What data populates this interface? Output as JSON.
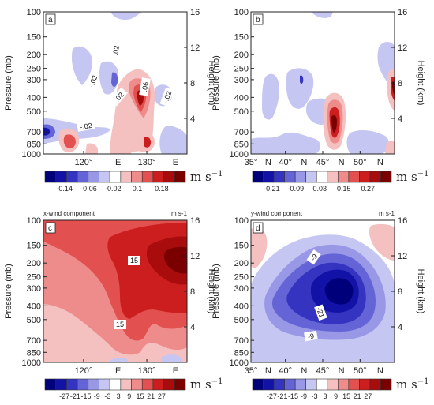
{
  "colors": {
    "reds": [
      "#f4c0c0",
      "#ee8c8c",
      "#e25050",
      "#cc1e1e",
      "#a80c0c",
      "#7a0000"
    ],
    "blues": [
      "#c6c6f2",
      "#9898e6",
      "#6464d6",
      "#3434c0",
      "#1212a6",
      "#00007a"
    ]
  },
  "chart_data": [
    {
      "panel": "a",
      "type": "heatmap",
      "title": "",
      "xlabel": "",
      "ylabel": "Pressure (mb)",
      "y2label": "Height (km)",
      "x_ticks": [
        "120°",
        "E",
        "130°",
        "E"
      ],
      "y_ticks": [
        "100",
        "150",
        "200",
        "250",
        "300",
        "400",
        "500",
        "700",
        "850",
        "1000"
      ],
      "y2_ticks": [
        "16",
        "12",
        "8",
        "4"
      ],
      "contour_labels": [
        ".02",
        "-.02",
        ".02",
        ".06",
        "-.02",
        "-.02"
      ],
      "colorbar": {
        "labels": [
          "-0.14",
          "-0.06",
          "-0.02",
          "0.1",
          "0.18"
        ],
        "unit": "m s",
        "unit_exp": "−1"
      }
    },
    {
      "panel": "b",
      "type": "heatmap",
      "title": "",
      "xlabel": "",
      "ylabel": "Pressure (mb)",
      "y2label": "Height (km)",
      "x_ticks": [
        "35°",
        "N",
        "40°",
        "N",
        "45°",
        "N",
        "50°",
        "N"
      ],
      "y_ticks": [
        "100",
        "150",
        "200",
        "250",
        "300",
        "400",
        "500",
        "700",
        "850",
        "1000"
      ],
      "y2_ticks": [
        "16",
        "12",
        "8",
        "4"
      ],
      "contour_labels": [],
      "colorbar": {
        "labels": [
          "-0.21",
          "-0.09",
          "0.03",
          "0.15",
          "0.27"
        ],
        "unit": "m s",
        "unit_exp": "−1"
      }
    },
    {
      "panel": "c",
      "type": "heatmap",
      "title": "x-wind component",
      "title_right": "m s-1",
      "xlabel": "",
      "ylabel": "Pressure (mb)",
      "y2label": "Height (km)",
      "x_ticks": [
        "120°",
        "E",
        "130°",
        "E"
      ],
      "y_ticks": [
        "100",
        "150",
        "200",
        "250",
        "300",
        "400",
        "500",
        "700",
        "850",
        "1000"
      ],
      "y2_ticks": [
        "16",
        "12",
        "8",
        "4"
      ],
      "contour_labels": [
        "15",
        "15"
      ],
      "colorbar": {
        "labels": [
          "-27",
          "-21",
          "-15",
          "-9",
          "-3",
          "3",
          "9",
          "15",
          "21",
          "27"
        ],
        "unit": "m s",
        "unit_exp": "−1"
      }
    },
    {
      "panel": "d",
      "type": "heatmap",
      "title": "y-wind component",
      "title_right": "m s-1",
      "xlabel": "",
      "ylabel": "Pressure (mb)",
      "y2label": "Height (km)",
      "x_ticks": [
        "35°",
        "N",
        "40°",
        "N",
        "45°",
        "N",
        "50°",
        "N"
      ],
      "y_ticks": [
        "100",
        "150",
        "200",
        "250",
        "300",
        "400",
        "500",
        "700",
        "850",
        "1000"
      ],
      "y2_ticks": [
        "16",
        "12",
        "8",
        "4"
      ],
      "contour_labels": [
        "-9",
        "-21",
        "-9"
      ],
      "colorbar": {
        "labels": [
          "-27",
          "-21",
          "-15",
          "-9",
          "-3",
          "3",
          "9",
          "15",
          "21",
          "27"
        ],
        "unit": "m s",
        "unit_exp": "−1"
      }
    }
  ]
}
